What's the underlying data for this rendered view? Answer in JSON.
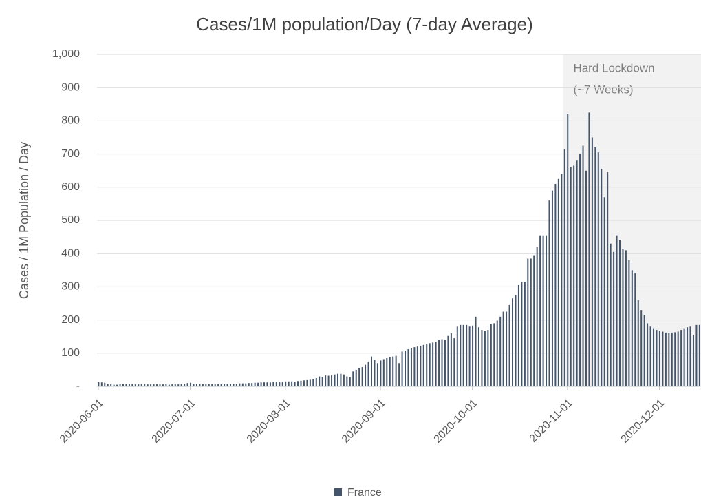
{
  "chart_data": {
    "type": "bar",
    "title": "Cases/1M population/Day (7-day Average)",
    "y_label": "Cases / 1M Population / Day",
    "annotation": [
      "Hard Lockdown",
      "(~7 Weeks)"
    ],
    "series": [
      {
        "name": "France",
        "color": "#44546a",
        "values": [
          13,
          12,
          11,
          8,
          6,
          5,
          5,
          6,
          7,
          7,
          7,
          7,
          6,
          6,
          6,
          6,
          6,
          6,
          6,
          6,
          6,
          6,
          6,
          5,
          6,
          6,
          6,
          7,
          8,
          10,
          11,
          8,
          8,
          7,
          7,
          7,
          7,
          7,
          7,
          7,
          7,
          8,
          8,
          8,
          8,
          8,
          9,
          9,
          9,
          10,
          10,
          11,
          11,
          12,
          12,
          12,
          12,
          13,
          13,
          13,
          14,
          15,
          15,
          15,
          14,
          16,
          17,
          18,
          19,
          20,
          22,
          25,
          30,
          28,
          33,
          32,
          33,
          36,
          38,
          38,
          36,
          30,
          28,
          45,
          50,
          55,
          58,
          65,
          75,
          90,
          80,
          70,
          78,
          82,
          85,
          88,
          90,
          92,
          70,
          105,
          108,
          112,
          115,
          118,
          120,
          122,
          125,
          128,
          130,
          132,
          135,
          140,
          142,
          140,
          152,
          160,
          145,
          180,
          185,
          185,
          185,
          180,
          183,
          210,
          178,
          170,
          168,
          170,
          188,
          190,
          198,
          210,
          225,
          225,
          245,
          265,
          275,
          305,
          315,
          315,
          385,
          385,
          395,
          420,
          455,
          455,
          455,
          560,
          590,
          610,
          625,
          640,
          715,
          820,
          660,
          665,
          680,
          700,
          725,
          650,
          825,
          750,
          720,
          705,
          655,
          570,
          645,
          430,
          405,
          455,
          440,
          415,
          410,
          380,
          350,
          340,
          260,
          230,
          215,
          190,
          180,
          175,
          170,
          168,
          165,
          162,
          160,
          162,
          163,
          165,
          170,
          175,
          178,
          180,
          155,
          185,
          185
        ]
      }
    ],
    "categories": [
      "2020-06-01",
      null,
      null,
      null,
      null,
      null,
      null,
      null,
      null,
      null,
      null,
      null,
      null,
      null,
      null,
      null,
      null,
      null,
      null,
      null,
      null,
      null,
      null,
      null,
      null,
      null,
      null,
      null,
      null,
      null,
      "2020-07-01",
      null,
      null,
      null,
      null,
      null,
      null,
      null,
      null,
      null,
      null,
      null,
      null,
      null,
      null,
      null,
      null,
      null,
      null,
      null,
      null,
      null,
      null,
      null,
      null,
      null,
      null,
      null,
      null,
      null,
      null,
      "2020-08-01",
      null,
      null,
      null,
      null,
      null,
      null,
      null,
      null,
      null,
      null,
      null,
      null,
      null,
      null,
      null,
      null,
      null,
      null,
      null,
      null,
      null,
      null,
      null,
      null,
      null,
      null,
      null,
      null,
      null,
      null,
      "2020-09-01",
      null,
      null,
      null,
      null,
      null,
      null,
      null,
      null,
      null,
      null,
      null,
      null,
      null,
      null,
      null,
      null,
      null,
      null,
      null,
      null,
      null,
      null,
      null,
      null,
      null,
      null,
      null,
      null,
      null,
      "2020-10-01",
      null,
      null,
      null,
      null,
      null,
      null,
      null,
      null,
      null,
      null,
      null,
      null,
      null,
      null,
      null,
      null,
      null,
      null,
      null,
      null,
      null,
      null,
      null,
      null,
      null,
      null,
      null,
      null,
      null,
      null,
      "2020-11-01",
      null,
      null,
      null,
      null,
      null,
      null,
      null,
      null,
      null,
      null,
      null,
      null,
      null,
      null,
      null,
      null,
      null,
      null,
      null,
      null,
      null,
      null,
      null,
      null,
      null,
      null,
      null,
      null,
      null,
      "2020-12-01",
      null,
      null,
      null,
      null,
      null,
      null,
      null,
      null,
      null,
      null,
      null,
      null,
      null
    ],
    "ylim": [
      0,
      1000
    ],
    "yticks": [
      {
        "value": 0,
        "label": "-"
      },
      100,
      200,
      300,
      400,
      500,
      600,
      700,
      800,
      900,
      {
        "value": 1000,
        "label": "1,000"
      }
    ],
    "grid": true,
    "legend": "bottom"
  }
}
